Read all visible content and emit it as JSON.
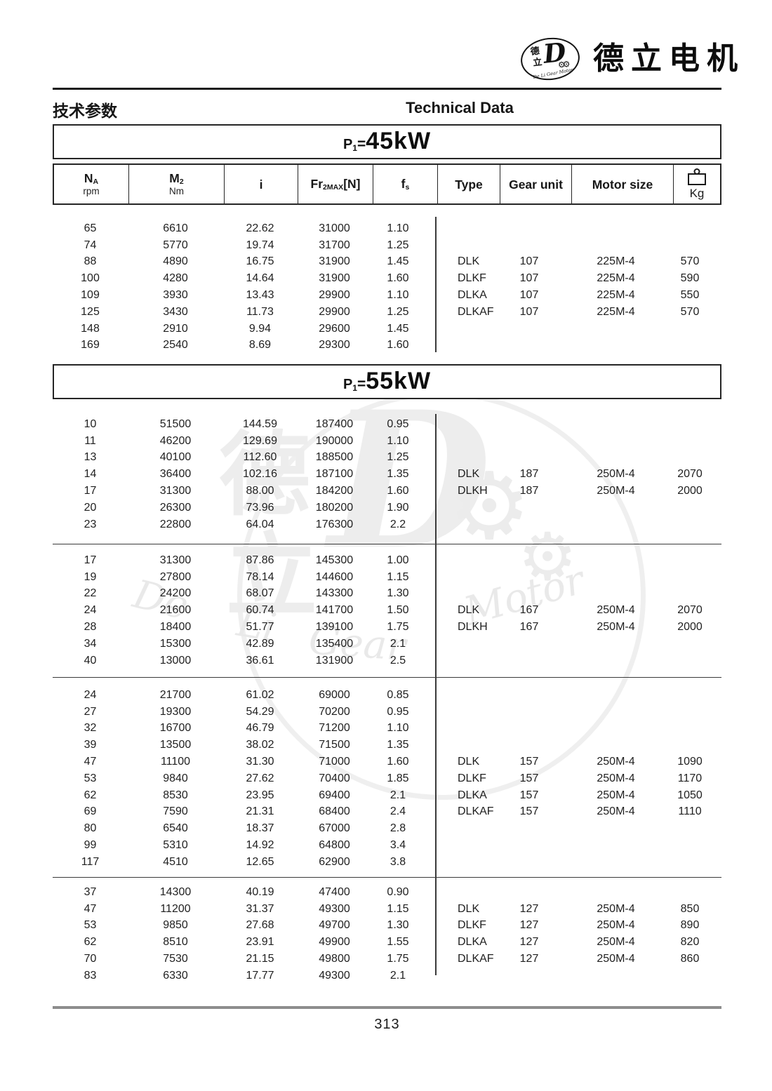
{
  "brand": {
    "name_cn": "德立电机",
    "logo": {
      "cn_top": "德",
      "cn_bottom": "立",
      "letter": "D",
      "gears": "⚙⚙",
      "arc_text": "De Li Gear Motor"
    }
  },
  "page_header": {
    "title_cn": "技术参数",
    "title_en": "Technical Data"
  },
  "table_header": {
    "columns": [
      {
        "main": "N",
        "sub": "A",
        "tail": "",
        "unit": "rpm"
      },
      {
        "main": "M",
        "sub": "2",
        "tail": "",
        "unit": "Nm"
      },
      {
        "main": "i",
        "sub": "",
        "tail": "",
        "unit": ""
      },
      {
        "main": "Fr",
        "sub": "2MAX",
        "tail": "[N]",
        "unit": ""
      },
      {
        "main": "f",
        "sub": "s",
        "tail": "",
        "unit": ""
      },
      {
        "main": "Type",
        "sub": "",
        "tail": "",
        "unit": ""
      },
      {
        "main": "Gear unit",
        "sub": "",
        "tail": "",
        "unit": ""
      },
      {
        "main": "Motor size",
        "sub": "",
        "tail": "",
        "unit": ""
      },
      {
        "main": "",
        "sub": "",
        "tail": "",
        "unit": "Kg",
        "icon": "weight-icon"
      }
    ]
  },
  "sections": [
    {
      "power": {
        "prefix": "P",
        "sub": "1",
        "eq": "=",
        "value": "45kW"
      },
      "groups": [
        {
          "rows": [
            [
              "65",
              "6610",
              "22.62",
              "31000",
              "1.10"
            ],
            [
              "74",
              "5770",
              "19.74",
              "31700",
              "1.25"
            ],
            [
              "88",
              "4890",
              "16.75",
              "31900",
              "1.45"
            ],
            [
              "100",
              "4280",
              "14.64",
              "31900",
              "1.60"
            ],
            [
              "109",
              "3930",
              "13.43",
              "29900",
              "1.10"
            ],
            [
              "125",
              "3430",
              "11.73",
              "29900",
              "1.25"
            ],
            [
              "148",
              "2910",
              "9.94",
              "29600",
              "1.45"
            ],
            [
              "169",
              "2540",
              "8.69",
              "29300",
              "1.60"
            ]
          ],
          "types": [
            [
              "DLK",
              "107",
              "225M-4",
              "570"
            ],
            [
              "DLKF",
              "107",
              "225M-4",
              "590"
            ],
            [
              "DLKA",
              "107",
              "225M-4",
              "550"
            ],
            [
              "DLKAF",
              "107",
              "225M-4",
              "570"
            ]
          ],
          "type_row_start": 3
        }
      ]
    },
    {
      "power": {
        "prefix": "P",
        "sub": "1",
        "eq": "=",
        "value": "55kW"
      },
      "groups": [
        {
          "rows": [
            [
              "10",
              "51500",
              "144.59",
              "187400",
              "0.95"
            ],
            [
              "11",
              "46200",
              "129.69",
              "190000",
              "1.10"
            ],
            [
              "13",
              "40100",
              "112.60",
              "188500",
              "1.25"
            ],
            [
              "14",
              "36400",
              "102.16",
              "187100",
              "1.35"
            ],
            [
              "17",
              "31300",
              "88.00",
              "184200",
              "1.60"
            ],
            [
              "20",
              "26300",
              "73.96",
              "180200",
              "1.90"
            ],
            [
              "23",
              "22800",
              "64.04",
              "176300",
              "2.2"
            ]
          ],
          "types": [
            [
              "DLK",
              "187",
              "250M-4",
              "2070"
            ],
            [
              "DLKH",
              "187",
              "250M-4",
              "2000"
            ]
          ],
          "type_row_start": 4
        },
        {
          "rows": [
            [
              "17",
              "31300",
              "87.86",
              "145300",
              "1.00"
            ],
            [
              "19",
              "27800",
              "78.14",
              "144600",
              "1.15"
            ],
            [
              "22",
              "24200",
              "68.07",
              "143300",
              "1.30"
            ],
            [
              "24",
              "21600",
              "60.74",
              "141700",
              "1.50"
            ],
            [
              "28",
              "18400",
              "51.77",
              "139100",
              "1.75"
            ],
            [
              "34",
              "15300",
              "42.89",
              "135400",
              "2.1"
            ],
            [
              "40",
              "13000",
              "36.61",
              "131900",
              "2.5"
            ]
          ],
          "types": [
            [
              "DLK",
              "167",
              "250M-4",
              "2070"
            ],
            [
              "DLKH",
              "167",
              "250M-4",
              "2000"
            ]
          ],
          "type_row_start": 4
        },
        {
          "rows": [
            [
              "24",
              "21700",
              "61.02",
              "69000",
              "0.85"
            ],
            [
              "27",
              "19300",
              "54.29",
              "70200",
              "0.95"
            ],
            [
              "32",
              "16700",
              "46.79",
              "71200",
              "1.10"
            ],
            [
              "39",
              "13500",
              "38.02",
              "71500",
              "1.35"
            ],
            [
              "47",
              "11100",
              "31.30",
              "71000",
              "1.60"
            ],
            [
              "53",
              "9840",
              "27.62",
              "70400",
              "1.85"
            ],
            [
              "62",
              "8530",
              "23.95",
              "69400",
              "2.1"
            ],
            [
              "69",
              "7590",
              "21.31",
              "68400",
              "2.4"
            ],
            [
              "80",
              "6540",
              "18.37",
              "67000",
              "2.8"
            ],
            [
              "99",
              "5310",
              "14.92",
              "64800",
              "3.4"
            ],
            [
              "117",
              "4510",
              "12.65",
              "62900",
              "3.8"
            ]
          ],
          "types": [
            [
              "DLK",
              "157",
              "250M-4",
              "1090"
            ],
            [
              "DLKF",
              "157",
              "250M-4",
              "1170"
            ],
            [
              "DLKA",
              "157",
              "250M-4",
              "1050"
            ],
            [
              "DLKAF",
              "157",
              "250M-4",
              "1110"
            ]
          ],
          "type_row_start": 5
        },
        {
          "rows": [
            [
              "37",
              "14300",
              "40.19",
              "47400",
              "0.90"
            ],
            [
              "47",
              "11200",
              "31.37",
              "49300",
              "1.15"
            ],
            [
              "53",
              "9850",
              "27.68",
              "49700",
              "1.30"
            ],
            [
              "62",
              "8510",
              "23.91",
              "49900",
              "1.55"
            ],
            [
              "70",
              "7530",
              "21.15",
              "49800",
              "1.75"
            ],
            [
              "83",
              "6330",
              "17.77",
              "49300",
              "2.1"
            ]
          ],
          "types": [
            [
              "DLK",
              "127",
              "250M-4",
              "850"
            ],
            [
              "DLKF",
              "127",
              "250M-4",
              "890"
            ],
            [
              "DLKA",
              "127",
              "250M-4",
              "820"
            ],
            [
              "DLKAF",
              "127",
              "250M-4",
              "860"
            ]
          ],
          "type_row_start": 2
        }
      ]
    }
  ],
  "watermark": {
    "cn_top": "德",
    "cn_bottom": "立",
    "letter": "D",
    "gear_glyph": "⚙",
    "words": [
      "De",
      "Li",
      "Gear",
      "Motor"
    ]
  },
  "footer": {
    "page_number": "313"
  }
}
